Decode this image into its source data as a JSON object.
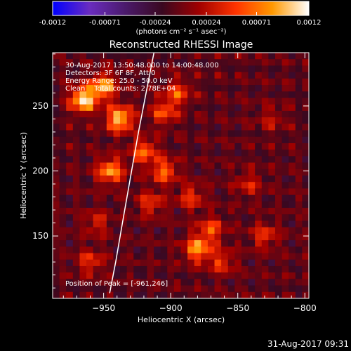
{
  "chart_data": {
    "type": "heatmap",
    "title": "Reconstructed RHESSI Image",
    "xlabel": "Heliocentric X (arcsec)",
    "ylabel": "Heliocentric Y (arcsec)",
    "xlim": [
      -988,
      -797
    ],
    "ylim": [
      102,
      291
    ],
    "x_ticks": [
      -950,
      -900,
      -850,
      -800
    ],
    "y_ticks": [
      150,
      200,
      250
    ],
    "colorbar": {
      "range": [
        -0.0012,
        0.0012
      ],
      "tick_values": [
        -0.0012,
        -0.00071,
        -0.00024,
        0.00024,
        0.00071,
        0.0012
      ],
      "tick_labels": [
        "-0.0012",
        "-0.00071",
        "-0.00024",
        "0.00024",
        "0.00071",
        "0.0012"
      ],
      "unit_label": "(photons cm⁻² s⁻¹ asec⁻²)",
      "colors": [
        "#0000ff",
        "#6a2cc0",
        "#4a1a6a",
        "#3a0820",
        "#a00000",
        "#ff3300",
        "#ff9900",
        "#ffffff"
      ]
    },
    "annotations": [
      "30-Aug-2017 13:50:48.000 to 14:00:48.000",
      "Detectors: 3F 6F 8F, Att 0",
      "Energy Range: 25.0 - 50.0 keV",
      "Clean    Total counts: 2.78E+04"
    ],
    "peak_label": "Position of Peak = [-961,246]",
    "limb_line": {
      "x": [
        -945.5,
        -941,
        -936,
        -930,
        -924,
        -918,
        -912.5
      ],
      "y": [
        106,
        130,
        160,
        195,
        230,
        262,
        291
      ]
    },
    "bright_spots": [
      {
        "x": -965,
        "y": 255,
        "v": 0.0012
      },
      {
        "x": -950,
        "y": 265,
        "v": 0.001
      },
      {
        "x": -938,
        "y": 240,
        "v": 0.0011
      },
      {
        "x": -945,
        "y": 200,
        "v": 0.0009
      },
      {
        "x": -920,
        "y": 215,
        "v": 0.0007
      },
      {
        "x": -905,
        "y": 245,
        "v": 0.0006
      },
      {
        "x": -895,
        "y": 260,
        "v": 0.0006
      },
      {
        "x": -905,
        "y": 200,
        "v": 0.0007
      },
      {
        "x": -915,
        "y": 175,
        "v": 0.0005
      },
      {
        "x": -885,
        "y": 180,
        "v": 0.0005
      },
      {
        "x": -870,
        "y": 155,
        "v": 0.0006
      },
      {
        "x": -880,
        "y": 140,
        "v": 0.0009
      },
      {
        "x": -862,
        "y": 130,
        "v": 0.0005
      },
      {
        "x": -842,
        "y": 190,
        "v": 0.0004
      },
      {
        "x": -830,
        "y": 150,
        "v": 0.0005
      },
      {
        "x": -825,
        "y": 240,
        "v": 0.0003
      },
      {
        "x": -960,
        "y": 130,
        "v": 0.0005
      },
      {
        "x": -955,
        "y": 160,
        "v": 0.0004
      }
    ]
  },
  "footer": {
    "timestamp": "31-Aug-2017 09:31"
  }
}
